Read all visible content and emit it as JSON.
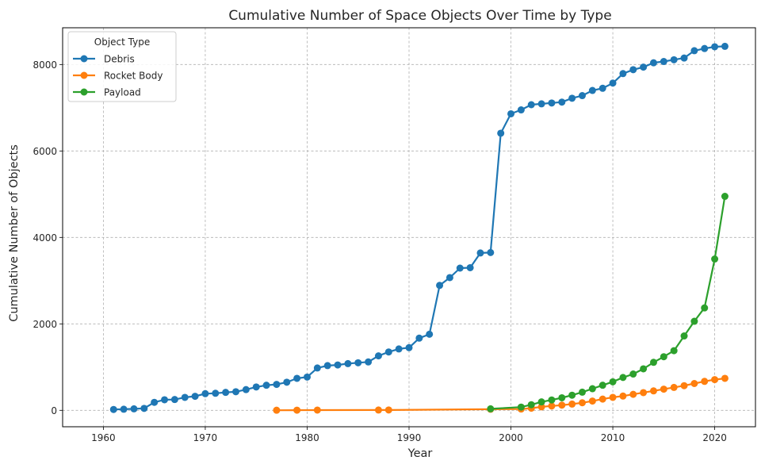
{
  "chart_data": {
    "type": "line",
    "title": "Cumulative Number of Space Objects Over Time by Type",
    "xlabel": "Year",
    "ylabel": "Cumulative Number of Objects",
    "xlim": [
      1956,
      2024
    ],
    "ylim": [
      -380,
      8850
    ],
    "xticks": [
      1960,
      1970,
      1980,
      1990,
      2000,
      2010,
      2020
    ],
    "yticks": [
      0,
      2000,
      4000,
      6000,
      8000
    ],
    "grid": true,
    "legend": {
      "title": "Object Type",
      "position": "top-left"
    },
    "series": [
      {
        "name": "Debris",
        "color": "#1f77b4",
        "x": [
          1961,
          1962,
          1963,
          1964,
          1965,
          1966,
          1967,
          1968,
          1969,
          1970,
          1971,
          1972,
          1973,
          1974,
          1975,
          1976,
          1977,
          1978,
          1979,
          1980,
          1981,
          1982,
          1983,
          1984,
          1985,
          1986,
          1987,
          1988,
          1989,
          1990,
          1991,
          1992,
          1993,
          1994,
          1995,
          1996,
          1997,
          1998,
          1999,
          2000,
          2001,
          2002,
          2003,
          2004,
          2005,
          2006,
          2007,
          2008,
          2009,
          2010,
          2011,
          2012,
          2013,
          2014,
          2015,
          2016,
          2017,
          2018,
          2019,
          2020,
          2021
        ],
        "y": [
          20,
          25,
          35,
          45,
          185,
          245,
          250,
          300,
          325,
          385,
          395,
          415,
          430,
          480,
          540,
          580,
          600,
          650,
          740,
          770,
          980,
          1035,
          1050,
          1080,
          1100,
          1120,
          1260,
          1350,
          1420,
          1450,
          1670,
          1760,
          2890,
          3070,
          3290,
          3300,
          3640,
          3650,
          6410,
          6860,
          6950,
          7070,
          7090,
          7110,
          7130,
          7220,
          7280,
          7400,
          7450,
          7570,
          7790,
          7880,
          7940,
          8040,
          8070,
          8110,
          8150,
          8320,
          8370,
          8410,
          8420
        ]
      },
      {
        "name": "Rocket Body",
        "color": "#ff7f0e",
        "x": [
          1977,
          1979,
          1981,
          1987,
          1988,
          1998,
          2001,
          2002,
          2003,
          2004,
          2005,
          2006,
          2007,
          2008,
          2009,
          2010,
          2011,
          2012,
          2013,
          2014,
          2015,
          2016,
          2017,
          2018,
          2019,
          2020,
          2021
        ],
        "y": [
          2,
          4,
          6,
          7,
          8,
          25,
          30,
          50,
          80,
          100,
          120,
          145,
          175,
          215,
          260,
          300,
          330,
          370,
          410,
          450,
          490,
          530,
          570,
          620,
          670,
          710,
          740
        ]
      },
      {
        "name": "Payload",
        "color": "#2ca02c",
        "x": [
          1998,
          2001,
          2002,
          2003,
          2004,
          2005,
          2006,
          2007,
          2008,
          2009,
          2010,
          2011,
          2012,
          2013,
          2014,
          2015,
          2016,
          2017,
          2018,
          2019,
          2020,
          2021
        ],
        "y": [
          35,
          75,
          130,
          195,
          240,
          290,
          350,
          420,
          500,
          580,
          660,
          760,
          840,
          960,
          1110,
          1240,
          1380,
          1720,
          2060,
          2370,
          3500,
          4950
        ]
      }
    ]
  }
}
